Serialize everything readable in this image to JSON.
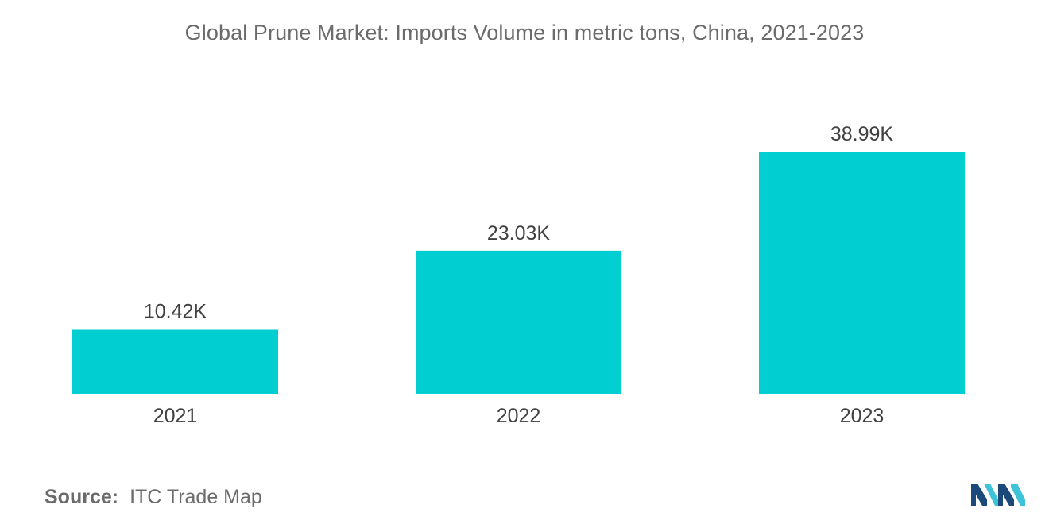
{
  "chart_data": {
    "type": "bar",
    "title": "Global Prune Market: Imports Volume in metric tons, China, 2021-2023",
    "categories": [
      "2021",
      "2022",
      "2023"
    ],
    "values": [
      10.42,
      23.03,
      38.99
    ],
    "value_labels": [
      "10.42K",
      "23.03K",
      "38.99K"
    ],
    "xlabel": "",
    "ylabel": "",
    "ylim": [
      0,
      38.99
    ],
    "grid": false,
    "legend": "none",
    "bar_color": "#00ced1"
  },
  "source": {
    "label": "Source:",
    "text": "ITC Trade Map"
  },
  "logo": {
    "icon": "mordor-intelligence-logo-icon",
    "color_dark": "#1b4a7a",
    "color_light": "#3ec3d8"
  }
}
